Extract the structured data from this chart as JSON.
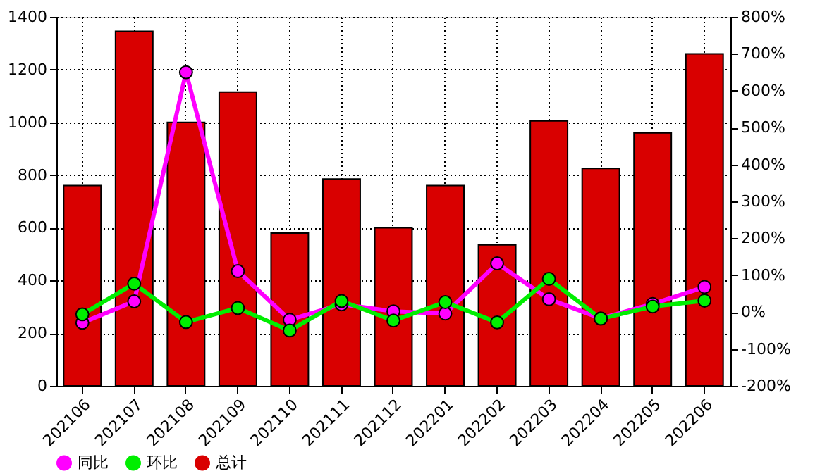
{
  "chart_data": {
    "type": "bar",
    "categories": [
      "202106",
      "202107",
      "202108",
      "202109",
      "202110",
      "202111",
      "202112",
      "202201",
      "202202",
      "202203",
      "202204",
      "202205",
      "202206"
    ],
    "series": [
      {
        "name": "同比",
        "type": "line",
        "axis": "y2",
        "color": "#ff00ff",
        "values": [
          -29,
          29,
          650,
          111,
          -21,
          21,
          2,
          -4,
          132,
          35,
          -17,
          22,
          68
        ]
      },
      {
        "name": "环比",
        "type": "line",
        "axis": "y2",
        "color": "#00ee00",
        "values": [
          -6,
          77,
          -27,
          11,
          -50,
          30,
          -23,
          27,
          -28,
          90,
          -18,
          15,
          31
        ]
      },
      {
        "name": "总计",
        "color": "#d90000",
        "values": [
          760,
          1345,
          1000,
          1115,
          580,
          785,
          600,
          760,
          535,
          1005,
          825,
          960,
          1260
        ]
      }
    ],
    "ylim": [
      0,
      1400
    ],
    "yticks": [
      0,
      200,
      400,
      600,
      800,
      1000,
      1200,
      1400
    ],
    "y2lim": [
      -200,
      800
    ],
    "y2ticks": [
      {
        "value": -200,
        "label": "-200%"
      },
      {
        "value": -100,
        "label": "-100%"
      },
      {
        "value": 0,
        "label": "0%"
      },
      {
        "value": 100,
        "label": "100%"
      },
      {
        "value": 200,
        "label": "200%"
      },
      {
        "value": 300,
        "label": "300%"
      },
      {
        "value": 400,
        "label": "400%"
      },
      {
        "value": 500,
        "label": "500%"
      },
      {
        "value": 600,
        "label": "600%"
      },
      {
        "value": 700,
        "label": "700%"
      },
      {
        "value": 800,
        "label": "800%"
      }
    ],
    "grid": true,
    "legend": "bottom left",
    "marker": "circle",
    "line_style": "solid"
  }
}
